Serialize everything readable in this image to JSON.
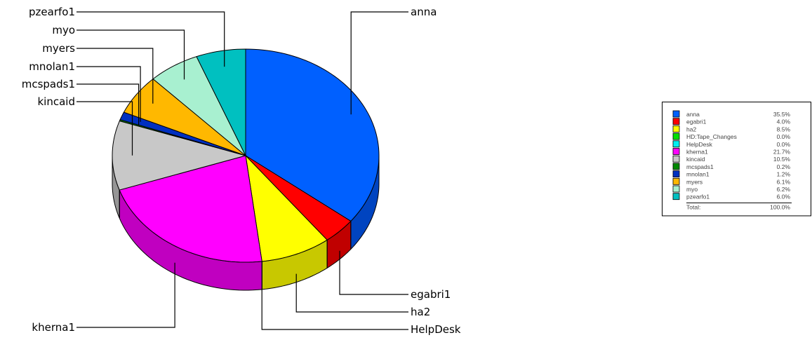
{
  "chart_data": {
    "type": "pie",
    "title": "",
    "style": "3d-exploded-pie",
    "series": [
      {
        "label": "anna",
        "value": 35.5,
        "display": "35.5%",
        "color": "#0060FF",
        "shade": "#0044C0"
      },
      {
        "label": "egabri1",
        "value": 4.0,
        "display": "4.0%",
        "color": "#FF0000",
        "shade": "#C00000"
      },
      {
        "label": "ha2",
        "value": 8.5,
        "display": "8.5%",
        "color": "#FFFF00",
        "shade": "#C8C800"
      },
      {
        "label": "HD:Tape_Changes",
        "value": 0.0,
        "display": "0.0%",
        "color": "#00E000",
        "shade": "#00A800"
      },
      {
        "label": "HelpDesk",
        "value": 0.0,
        "display": "0.0%",
        "color": "#00F0F0",
        "shade": "#00B0B0"
      },
      {
        "label": "kherna1",
        "value": 21.7,
        "display": "21.7%",
        "color": "#FF00FF",
        "shade": "#C000C0"
      },
      {
        "label": "kincaid",
        "value": 10.5,
        "display": "10.5%",
        "color": "#C8C8C8",
        "shade": "#969696"
      },
      {
        "label": "mcspads1",
        "value": 0.2,
        "display": "0.2%",
        "color": "#008800",
        "shade": "#006000"
      },
      {
        "label": "mnolan1",
        "value": 1.2,
        "display": "1.2%",
        "color": "#0030C0",
        "shade": "#002090"
      },
      {
        "label": "myers",
        "value": 6.1,
        "display": "6.1%",
        "color": "#FFB800",
        "shade": "#C88C00"
      },
      {
        "label": "myo",
        "value": 6.2,
        "display": "6.2%",
        "color": "#A8F0D0",
        "shade": "#80C0A0"
      },
      {
        "label": "pzearfo1",
        "value": 6.0,
        "display": "6.0%",
        "color": "#00C0C0",
        "shade": "#008C8C"
      }
    ],
    "legend": {
      "position": "right",
      "total_label": "Total:",
      "total_value": "100.0%"
    },
    "callouts": {
      "left": [
        "pzearfo1",
        "myo",
        "myers",
        "mnolan1",
        "mcspads1",
        "kincaid",
        "kherna1"
      ],
      "right": [
        "anna",
        "egabri1",
        "ha2",
        "HelpDesk"
      ]
    }
  }
}
